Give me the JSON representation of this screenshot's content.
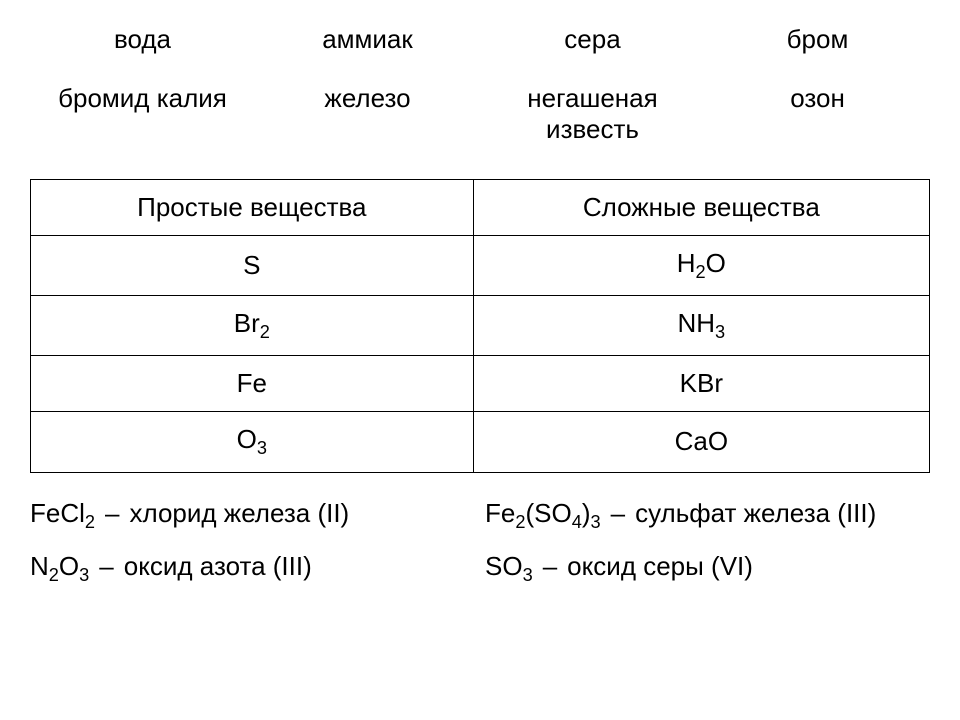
{
  "colors": {
    "text": "#000000",
    "background": "#ffffff",
    "border": "#000000"
  },
  "typography": {
    "fontsize_pt": 20,
    "font_family": "Arial"
  },
  "wordbank": {
    "row1": [
      "вода",
      "аммиак",
      "сера",
      "бром"
    ],
    "row2": [
      "бромид калия",
      "железо",
      "негашеная известь",
      "озон"
    ]
  },
  "table": {
    "headers": [
      "Простые вещества",
      "Сложные вещества"
    ],
    "rows": [
      {
        "simple": {
          "text": "S"
        },
        "complex": {
          "text": "H2O",
          "parts": [
            "H",
            "2",
            "O"
          ]
        }
      },
      {
        "simple": {
          "text": "Br2",
          "parts": [
            "Br",
            "2"
          ]
        },
        "complex": {
          "text": "NH3",
          "parts": [
            "NH",
            "3"
          ]
        }
      },
      {
        "simple": {
          "text": "Fe"
        },
        "complex": {
          "text": "KBr"
        }
      },
      {
        "simple": {
          "text": "O3",
          "parts": [
            "O",
            "3"
          ]
        },
        "complex": {
          "text": "CaO"
        }
      }
    ]
  },
  "formulae": {
    "fecl2": {
      "label": "FeCl2",
      "dash": "–",
      "name": "хлорид железа (II)"
    },
    "fe2so43": {
      "label": "Fe2(SO4)3",
      "dash": "–",
      "name": "сульфат железа (III)"
    },
    "n2o3": {
      "label": "N2O3",
      "dash": "–",
      "name": "оксид азота (III)"
    },
    "so3": {
      "label": "SO3",
      "dash": "–",
      "name": "оксид серы (VI)"
    }
  }
}
